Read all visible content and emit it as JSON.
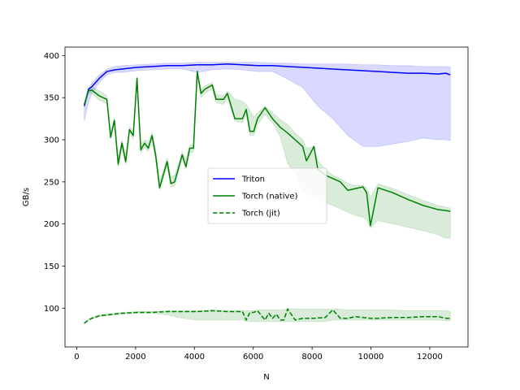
{
  "chart_data": {
    "type": "line",
    "xlabel": "N",
    "ylabel": "GB/s",
    "xlim": [
      -400,
      13300
    ],
    "ylim": [
      54,
      410
    ],
    "xticks": [
      0,
      2000,
      4000,
      6000,
      8000,
      10000,
      12000
    ],
    "xtick_labels": [
      "0",
      "2000",
      "4000",
      "6000",
      "8000",
      "10000",
      "12000"
    ],
    "yticks": [
      100,
      150,
      200,
      250,
      300,
      350,
      400
    ],
    "ytick_labels": [
      "100",
      "150",
      "200",
      "250",
      "300",
      "350",
      "400"
    ],
    "grid": false,
    "legend_position": "center",
    "colors": {
      "triton": "#0000ff",
      "torch": "#008000",
      "triton_band": "#0000ff",
      "torch_band": "#008000"
    },
    "series": [
      {
        "name": "Triton",
        "style": "solid",
        "x": [
          256,
          400,
          512,
          768,
          1024,
          1280,
          1536,
          2048,
          2560,
          3072,
          3584,
          4096,
          4608,
          5120,
          5632,
          6144,
          6656,
          7168,
          7680,
          8192,
          8704,
          9216,
          9728,
          10240,
          10752,
          11264,
          11776,
          12288,
          12544,
          12700
        ],
        "y": [
          340,
          360,
          363,
          373,
          381,
          383,
          384,
          386,
          387,
          388,
          388,
          389,
          389,
          390,
          389,
          388,
          388,
          387,
          386,
          385,
          384,
          383,
          382,
          381,
          380,
          379,
          379,
          378,
          379,
          377
        ],
        "band_upper": [
          342,
          362,
          367,
          377,
          384,
          387,
          388,
          389,
          390,
          391,
          391,
          392,
          392,
          392,
          392,
          392,
          391,
          391,
          390,
          390,
          390,
          390,
          389,
          389,
          388,
          388,
          387,
          387,
          387,
          386
        ],
        "band_lower": [
          322,
          345,
          355,
          368,
          377,
          380,
          380,
          382,
          383,
          384,
          384,
          380,
          383,
          384,
          383,
          381,
          381,
          372,
          362,
          340,
          325,
          305,
          292,
          292,
          295,
          298,
          302,
          300,
          300,
          299
        ]
      },
      {
        "name": "Torch (native)",
        "style": "solid",
        "x": [
          256,
          400,
          512,
          768,
          1024,
          1150,
          1280,
          1408,
          1536,
          1664,
          1792,
          1920,
          2048,
          2176,
          2304,
          2432,
          2560,
          2688,
          2816,
          3072,
          3200,
          3328,
          3584,
          3712,
          3840,
          3968,
          4096,
          4224,
          4352,
          4608,
          4736,
          4992,
          5120,
          5376,
          5632,
          5760,
          5888,
          6016,
          6144,
          6400,
          6656,
          6912,
          7168,
          7424,
          7680,
          7808,
          8064,
          8192,
          8448,
          8704,
          8960,
          9216,
          9472,
          9728,
          9856,
          9984,
          10240,
          10752,
          11264,
          11776,
          12288,
          12544,
          12700
        ],
        "y": [
          342,
          358,
          359,
          352,
          348,
          303,
          323,
          271,
          296,
          274,
          312,
          305,
          373,
          288,
          296,
          290,
          305,
          280,
          243,
          274,
          248,
          250,
          282,
          268,
          290,
          290,
          381,
          355,
          360,
          365,
          348,
          348,
          355,
          325,
          325,
          336,
          310,
          310,
          325,
          338,
          325,
          315,
          308,
          300,
          292,
          275,
          292,
          265,
          258,
          254,
          250,
          240,
          242,
          244,
          237,
          198,
          243,
          237,
          229,
          222,
          217,
          216,
          215
        ],
        "band_upper": [
          344,
          361,
          363,
          358,
          352,
          310,
          326,
          280,
          300,
          282,
          316,
          310,
          375,
          295,
          300,
          298,
          309,
          287,
          250,
          279,
          256,
          258,
          286,
          276,
          294,
          294,
          383,
          360,
          364,
          368,
          354,
          352,
          358,
          348,
          346,
          342,
          335,
          327,
          332,
          340,
          332,
          324,
          318,
          308,
          300,
          290,
          292,
          275,
          265,
          258,
          254,
          248,
          246,
          246,
          243,
          232,
          248,
          242,
          235,
          228,
          222,
          220,
          219
        ],
        "band_lower": [
          340,
          355,
          355,
          347,
          343,
          300,
          320,
          268,
          291,
          270,
          310,
          300,
          368,
          284,
          291,
          286,
          300,
          276,
          240,
          268,
          244,
          245,
          278,
          265,
          285,
          285,
          376,
          350,
          355,
          360,
          344,
          342,
          350,
          322,
          320,
          330,
          305,
          305,
          318,
          330,
          320,
          304,
          272,
          260,
          240,
          236,
          232,
          230,
          225,
          222,
          218,
          214,
          210,
          208,
          205,
          195,
          204,
          200,
          196,
          192,
          187,
          183,
          183
        ]
      },
      {
        "name": "Torch (jit)",
        "style": "dashed",
        "x": [
          256,
          400,
          512,
          768,
          1024,
          1280,
          1536,
          2048,
          2560,
          3072,
          3584,
          4096,
          4608,
          5120,
          5632,
          5760,
          5888,
          6016,
          6144,
          6400,
          6528,
          6656,
          6784,
          6912,
          7040,
          7168,
          7424,
          7680,
          8064,
          8448,
          8704,
          8960,
          9216,
          9472,
          9728,
          9984,
          10240,
          10752,
          11264,
          11776,
          12288,
          12544,
          12700
        ],
        "y": [
          82,
          86,
          88,
          91,
          92,
          93,
          94,
          95,
          95,
          96,
          96,
          96,
          97,
          96,
          96,
          86,
          95,
          95,
          97,
          86,
          94,
          88,
          93,
          86,
          86,
          99,
          86,
          88,
          88,
          89,
          98,
          88,
          88,
          90,
          89,
          88,
          88,
          89,
          89,
          90,
          90,
          88,
          88
        ],
        "band_upper": [
          83,
          87,
          89,
          92,
          93,
          94,
          95,
          96,
          96,
          97,
          97,
          97,
          98,
          97,
          97,
          97,
          97,
          97,
          98,
          98,
          98,
          98,
          98,
          98,
          98,
          100,
          99,
          99,
          99,
          99,
          99,
          99,
          98,
          98,
          98,
          98,
          98,
          98,
          97,
          97,
          97,
          97,
          96
        ],
        "band_lower": [
          82,
          85,
          87,
          90,
          91,
          92,
          93,
          94,
          94,
          92,
          88,
          86,
          86,
          86,
          86,
          84,
          84,
          84,
          84,
          84,
          84,
          84,
          84,
          84,
          84,
          84,
          84,
          84,
          84,
          84,
          86,
          86,
          86,
          86,
          86,
          86,
          86,
          86,
          86,
          86,
          86,
          85,
          85
        ]
      }
    ]
  }
}
